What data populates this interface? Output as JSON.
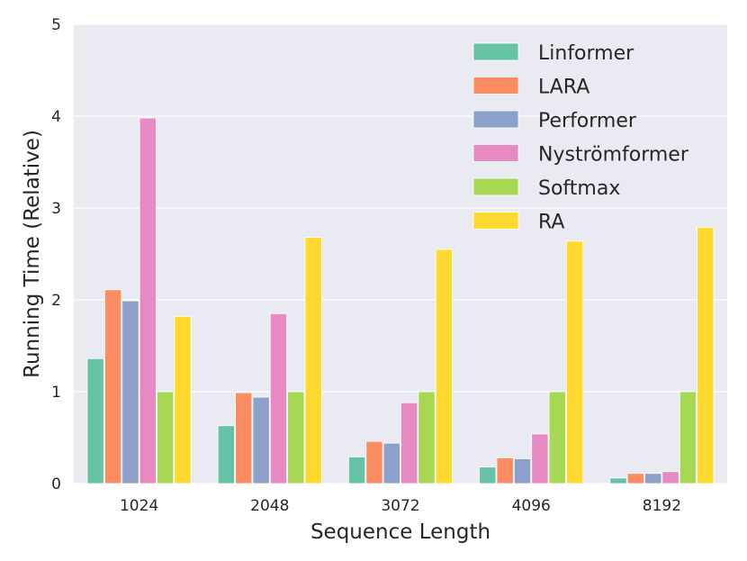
{
  "chart_data": {
    "type": "bar",
    "title": "",
    "xlabel": "Sequence Length",
    "ylabel": "Running Time (Relative)",
    "ylim": [
      0,
      5
    ],
    "yticks": [
      0,
      1,
      2,
      3,
      4,
      5
    ],
    "grid": true,
    "legend_position": "top-right",
    "categories": [
      "1024",
      "2048",
      "3072",
      "4096",
      "8192"
    ],
    "series": [
      {
        "name": "Linformer",
        "color": "#66c2a5",
        "values": [
          1.36,
          0.63,
          0.29,
          0.18,
          0.06
        ]
      },
      {
        "name": "LARA",
        "color": "#fc8d62",
        "values": [
          2.11,
          0.99,
          0.46,
          0.28,
          0.11
        ]
      },
      {
        "name": "Performer",
        "color": "#8da0cb",
        "values": [
          1.99,
          0.94,
          0.44,
          0.27,
          0.11
        ]
      },
      {
        "name": "Nyströmformer",
        "color": "#e78ac3",
        "values": [
          3.98,
          1.85,
          0.88,
          0.54,
          0.13
        ]
      },
      {
        "name": "Softmax",
        "color": "#a6d854",
        "values": [
          1.0,
          1.0,
          1.0,
          1.0,
          1.0
        ]
      },
      {
        "name": "RA",
        "color": "#ffd92f",
        "values": [
          1.82,
          2.68,
          2.55,
          2.64,
          2.79
        ]
      }
    ]
  }
}
